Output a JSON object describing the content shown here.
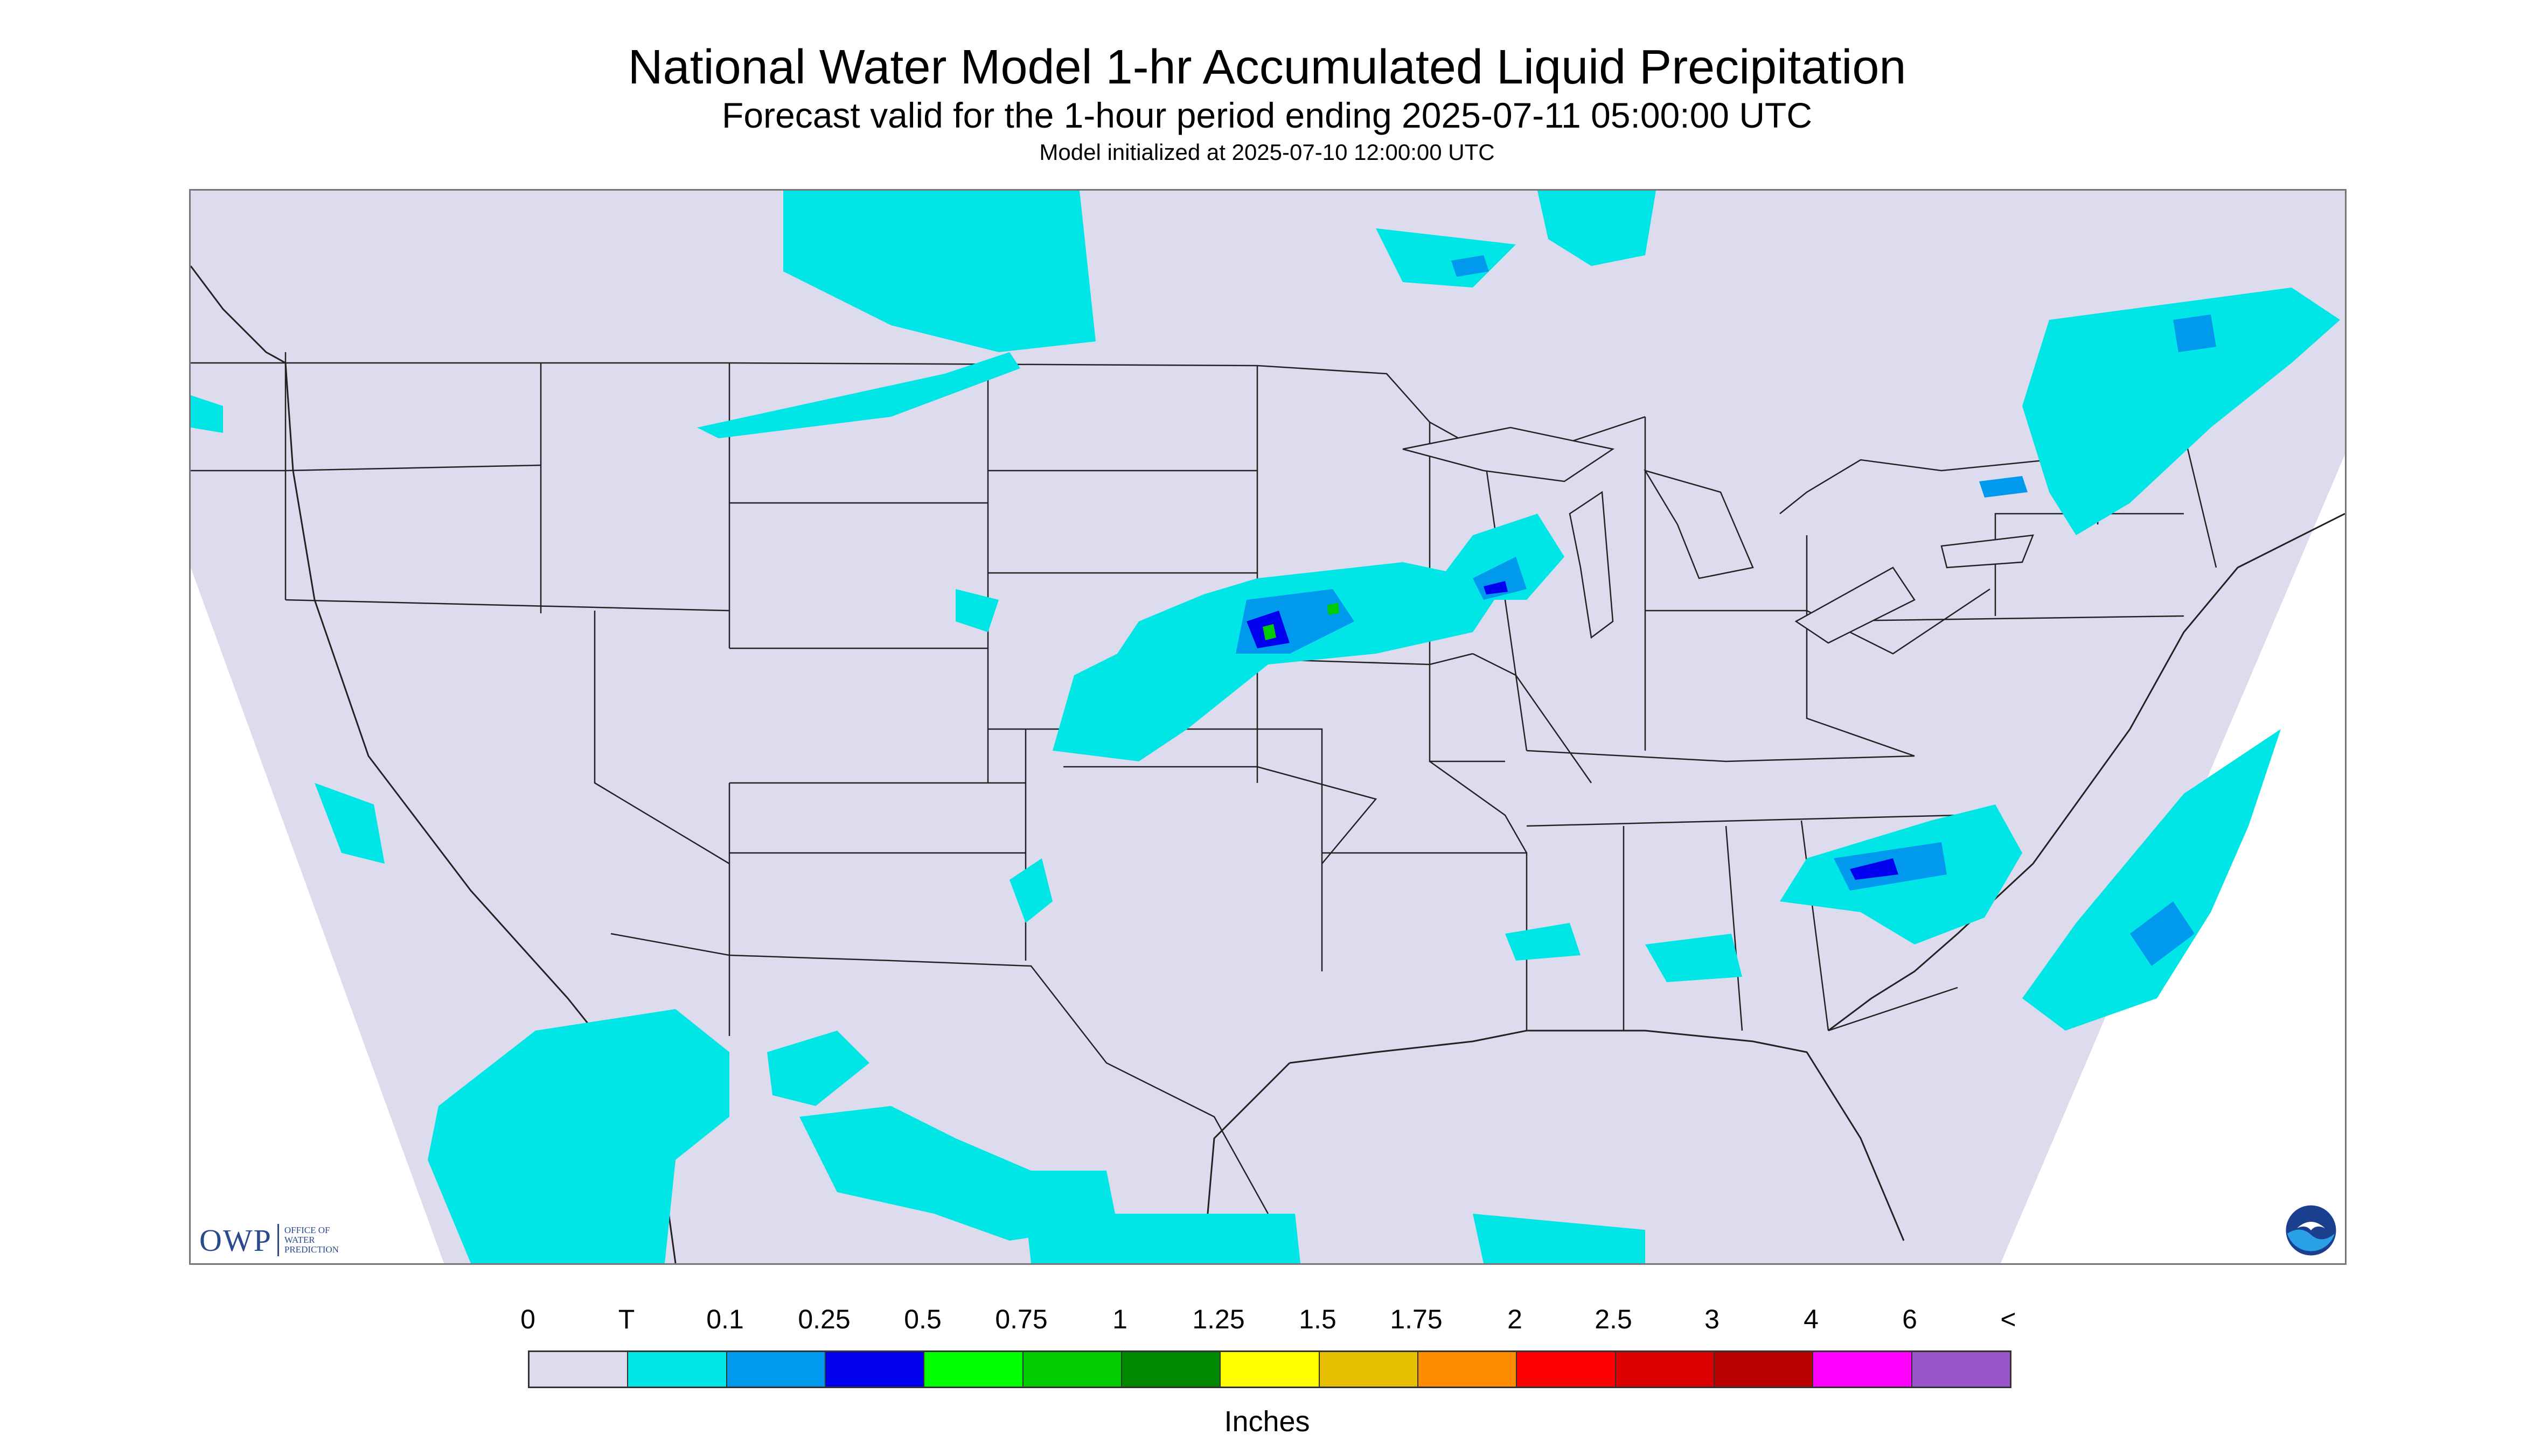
{
  "header": {
    "title": "National Water Model 1-hr Accumulated Liquid Precipitation",
    "subtitle": "Forecast valid for the 1-hour period ending 2025-07-11 05:00:00 UTC",
    "init": "Model initialized at 2025-07-10 12:00:00 UTC"
  },
  "logos": {
    "owp_mark": "OWP",
    "owp_text": [
      "OFFICE OF",
      "WATER",
      "PREDICTION"
    ],
    "noaa_icon": "noaa-logo-icon"
  },
  "legend": {
    "labels": [
      "0",
      "T",
      "0.1",
      "0.25",
      "0.5",
      "0.75",
      "1",
      "1.25",
      "1.5",
      "1.75",
      "2",
      "2.5",
      "3",
      "4",
      "6",
      "<"
    ],
    "colors": [
      "#dcdcee",
      "#00e5e5",
      "#0099ee",
      "#0000ee",
      "#00ff00",
      "#00cc00",
      "#008800",
      "#ffff00",
      "#e6c000",
      "#ff8c00",
      "#ff0000",
      "#dd0000",
      "#bb0000",
      "#ff00ff",
      "#9955cc"
    ],
    "units": "Inches"
  },
  "map_colors": {
    "nodata": "#ffffff",
    "background": "#dcdcee",
    "trace": "#00e5e5",
    "light": "#0099ee",
    "moderate": "#0000ee",
    "heavy": "#00cc00",
    "border": "#222222"
  }
}
